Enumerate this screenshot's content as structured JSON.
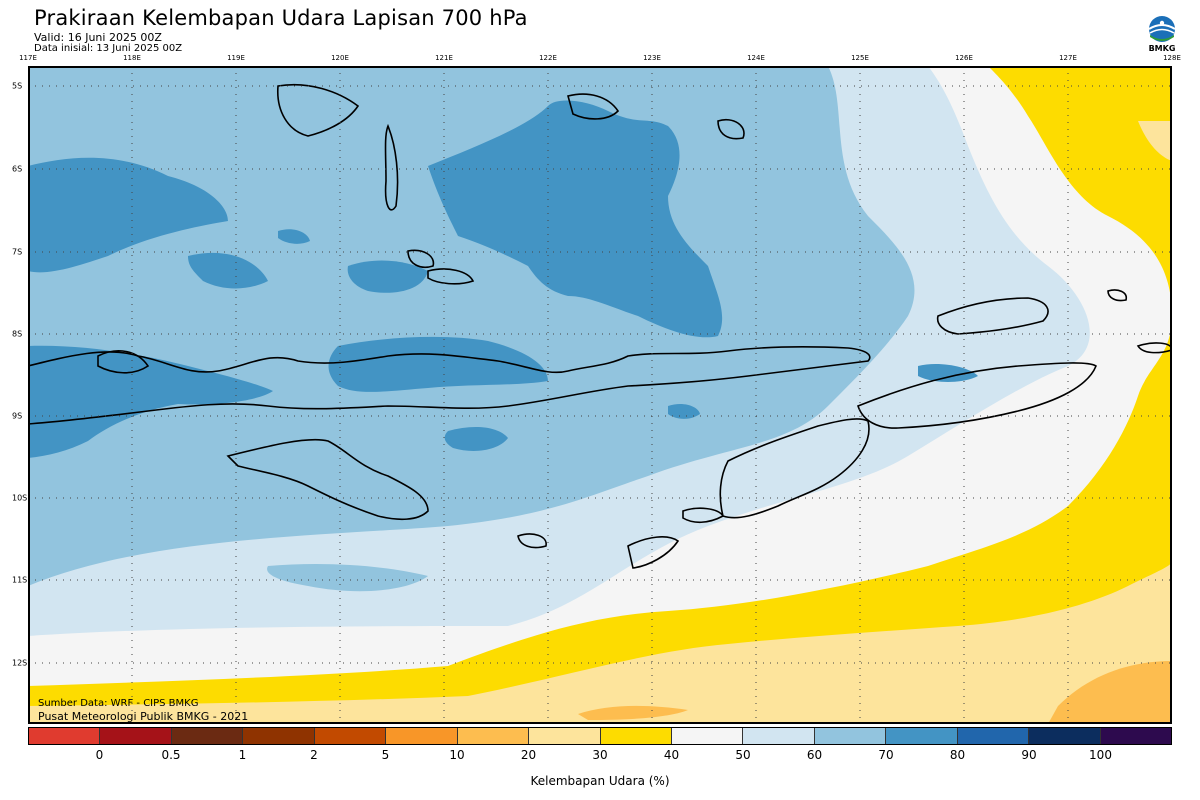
{
  "header": {
    "title": "Prakiraan Kelembapan Udara Lapisan 700 hPa",
    "valid": "Valid: 16 Juni 2025 00Z",
    "init": "Data inisial: 13 Juni 2025 00Z"
  },
  "logo": {
    "text": "BMKG",
    "icon": "bmkg-logo-icon"
  },
  "map": {
    "lon_labels": [
      "117E",
      "118E",
      "119E",
      "120E",
      "121E",
      "122E",
      "123E",
      "124E",
      "125E",
      "126E",
      "127E",
      "128E"
    ],
    "lat_labels": [
      "5S",
      "6S",
      "7S",
      "8S",
      "9S",
      "10S",
      "11S",
      "12S"
    ],
    "source_line1": "Sumber Data: WRF - CIPS BMKG",
    "source_line2": "Pusat Meteorologi Publik BMKG - 2021",
    "colors": {
      "rh_20_30": "#fde49c",
      "rh_30_40": "#fddc00",
      "rh_40_50": "#f5f5f5",
      "rh_50_60": "#d2e5f1",
      "rh_60_70": "#92c4de",
      "rh_70_80": "#4394c4",
      "rh_10_20": "#fdbd4f"
    }
  },
  "colorbar": {
    "colors": [
      "#e03b2f",
      "#a51218",
      "#6b2a12",
      "#8f3300",
      "#c24a00",
      "#f89628",
      "#fdbd4f",
      "#fde49c",
      "#fddc00",
      "#f5f5f5",
      "#d2e5f1",
      "#92c4de",
      "#4394c4",
      "#2166ac",
      "#0c2d5e",
      "#2d0a4e"
    ],
    "tick_labels": [
      "0",
      "0.5",
      "1",
      "2",
      "5",
      "10",
      "20",
      "30",
      "40",
      "50",
      "60",
      "70",
      "80",
      "90",
      "100"
    ],
    "title": "Kelembapan Udara (%)"
  }
}
